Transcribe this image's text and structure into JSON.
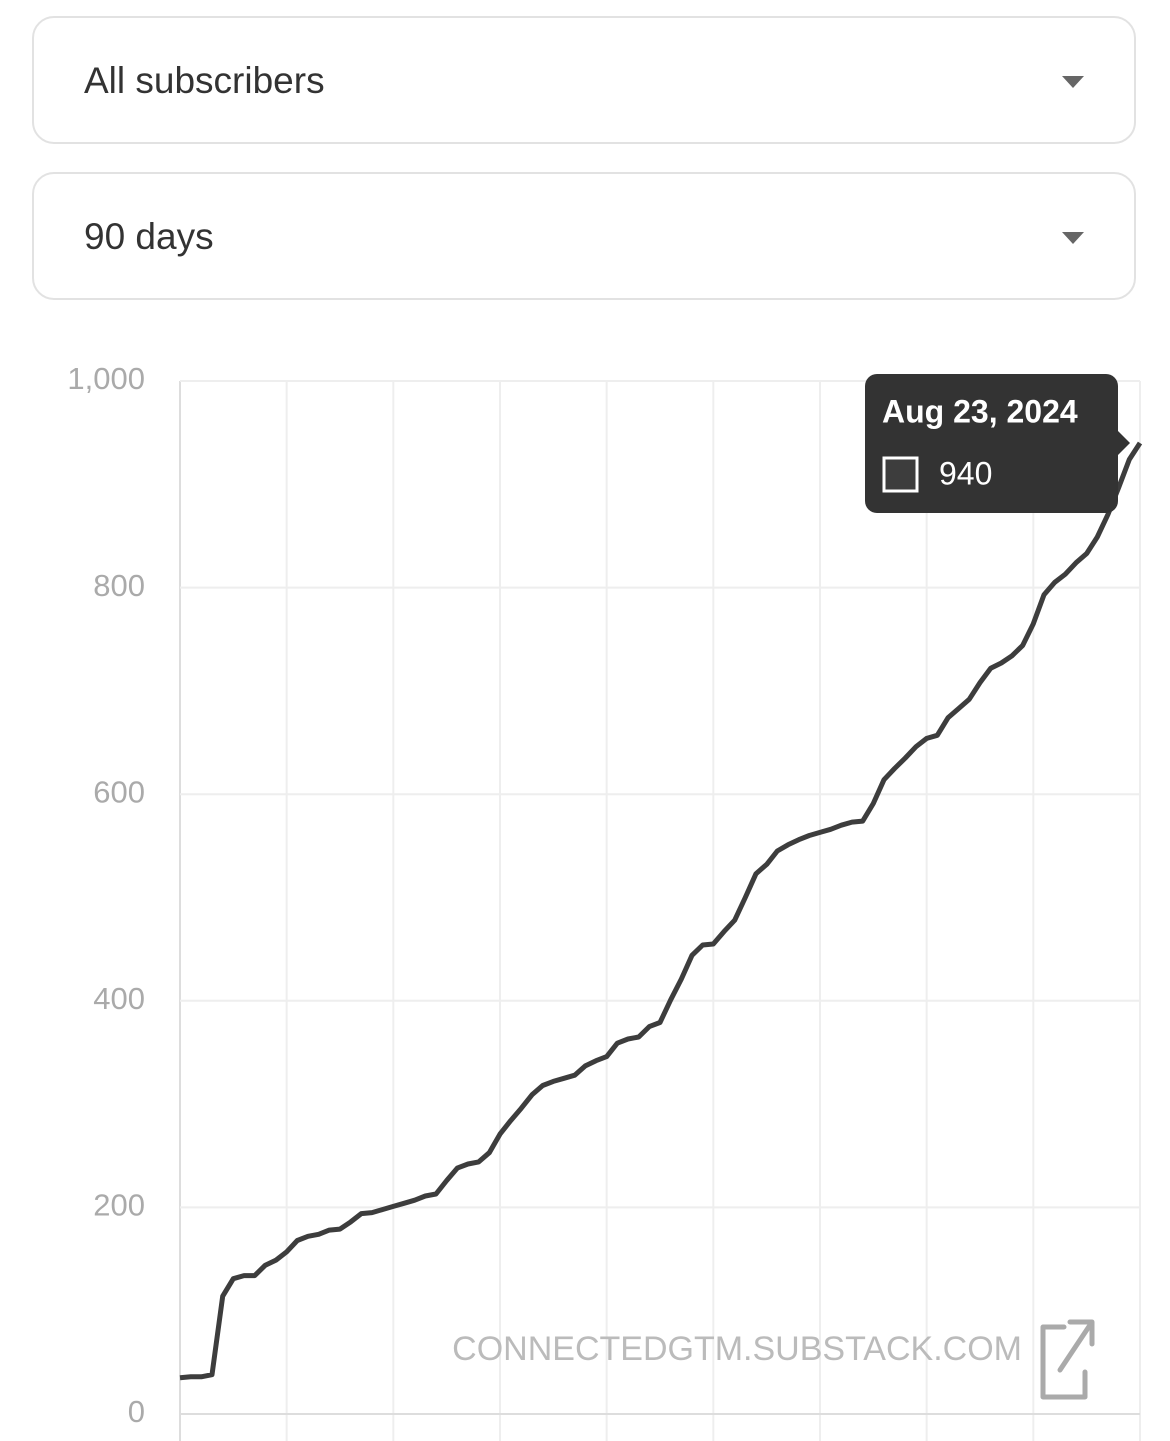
{
  "dropdowns": [
    "All subscribers",
    "90 days"
  ],
  "chart_data": {
    "type": "line",
    "series": [
      {
        "color": "#3d3d3d",
        "values": [
          35,
          36,
          36,
          38,
          114,
          131,
          134,
          134,
          144,
          149,
          157,
          168,
          172,
          174,
          178,
          179,
          186,
          194,
          195,
          198,
          201,
          204,
          207,
          211,
          213,
          226,
          238,
          242,
          244,
          253,
          271,
          284,
          296,
          309,
          318,
          322,
          325,
          328,
          337,
          342,
          346,
          359,
          363,
          365,
          375,
          379,
          401,
          421,
          444,
          454,
          455,
          467,
          478,
          500,
          523,
          532,
          545,
          551,
          556,
          560,
          563,
          566,
          570,
          573,
          574,
          591,
          614,
          625,
          635,
          646,
          654,
          657,
          674,
          683,
          692,
          708,
          722,
          727,
          734,
          744,
          765,
          793,
          805,
          813,
          824,
          833,
          849,
          871,
          897,
          924,
          940
        ]
      }
    ],
    "ylim": [
      0,
      1000
    ],
    "yticks": [
      0,
      200,
      400,
      600,
      800,
      {
        "value": 1000,
        "label": "1,000"
      }
    ],
    "grid": true,
    "tooltip_date": "Aug 23, 2024",
    "watermark": "CONNECTEDGTM.SUBSTACK.COM"
  }
}
